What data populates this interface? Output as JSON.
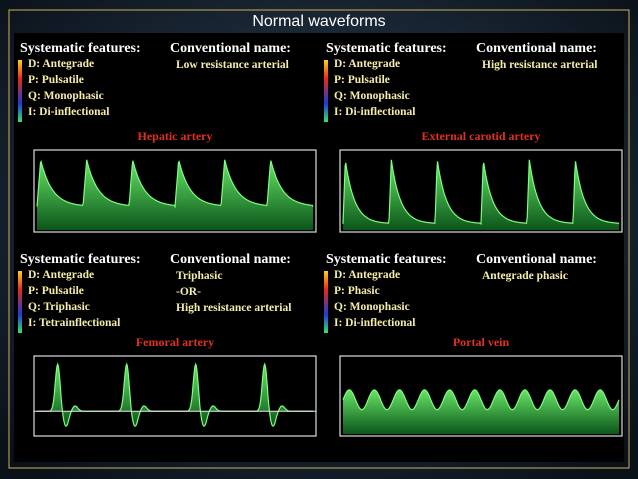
{
  "title": "Normal waveforms",
  "panels": [
    {
      "features_heading": "Systematic features:",
      "features": [
        "D: Antegrade",
        "P: Pulsatile",
        "Q: Monophasic",
        "I: Di-inflectional"
      ],
      "name_heading": "Conventional name:",
      "name_lines": [
        "Low resistance arterial"
      ],
      "vessel": "Hepatic artery"
    },
    {
      "features_heading": "Systematic features:",
      "features": [
        "D: Antegrade",
        "P: Pulsatile",
        "Q: Monophasic",
        "I: Di-inflectional"
      ],
      "name_heading": "Conventional name:",
      "name_lines": [
        "High resistance arterial"
      ],
      "vessel": "External carotid artery"
    },
    {
      "features_heading": "Systematic features:",
      "features": [
        "D: Antegrade",
        "P: Pulsatile",
        "Q: Triphasic",
        "I: Tetrainflectional"
      ],
      "name_heading": "Conventional name:",
      "name_lines": [
        "Triphasic",
        "-OR-",
        "High resistance arterial"
      ],
      "vessel": "Femoral artery"
    },
    {
      "features_heading": "Systematic features:",
      "features": [
        "D: Antegrade",
        "P: Phasic",
        "Q: Monophasic",
        "I: Di-inflectional"
      ],
      "name_heading": "Conventional name:",
      "name_lines": [
        "Antegrade phasic"
      ],
      "vessel": "Portal vein"
    }
  ]
}
